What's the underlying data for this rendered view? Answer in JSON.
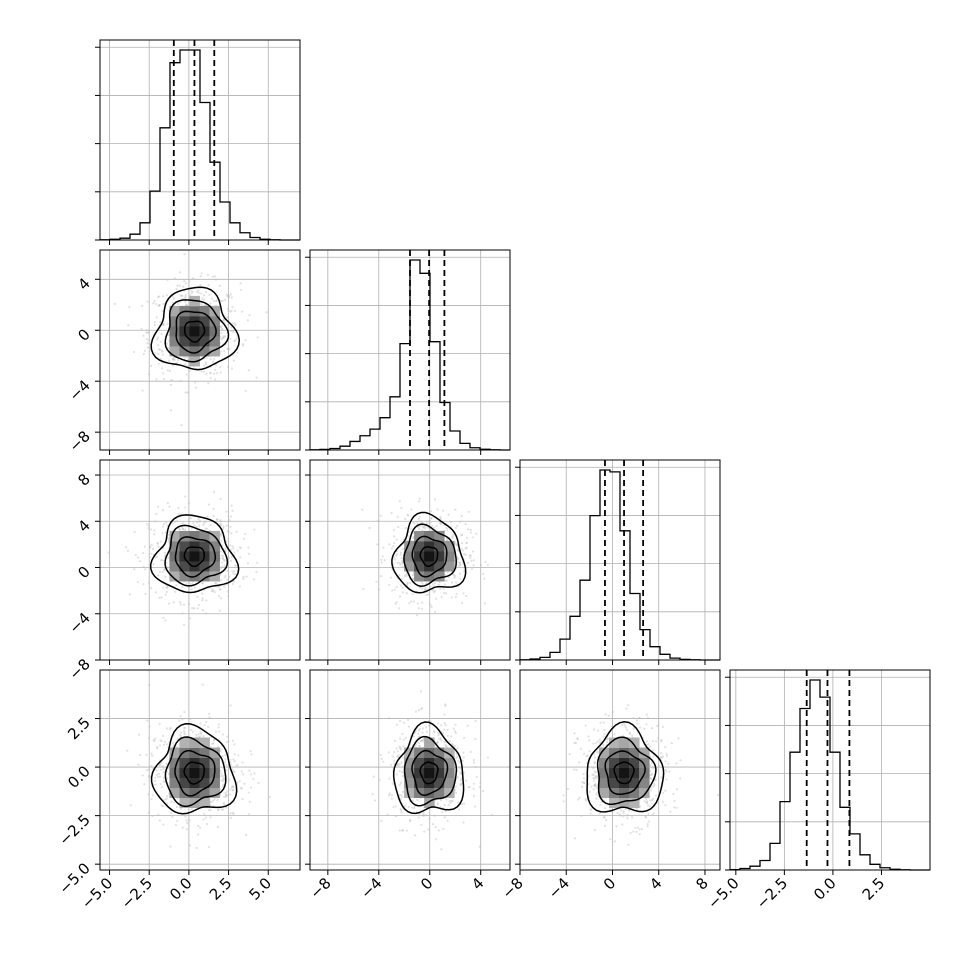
{
  "chart_data": {
    "type": "corner",
    "parameters": 4,
    "ranges": [
      [
        -5.6,
        7.0
      ],
      [
        -9.4,
        6.3
      ],
      [
        -8.0,
        9.3
      ],
      [
        -5.3,
        5.0
      ]
    ],
    "quantiles": [
      [
        -0.95,
        0.35,
        1.6
      ],
      [
        -1.55,
        -0.05,
        1.15
      ],
      [
        -0.65,
        1.0,
        2.65
      ],
      [
        -1.35,
        -0.28,
        0.85
      ]
    ],
    "x_ticks": [
      [
        {
          "v": -5.0,
          "t": "−5.0"
        },
        {
          "v": -2.5,
          "t": "−2.5"
        },
        {
          "v": 0.0,
          "t": "0.0"
        },
        {
          "v": 2.5,
          "t": "2.5"
        },
        {
          "v": 5.0,
          "t": "5.0"
        }
      ],
      [
        {
          "v": -8,
          "t": "−8"
        },
        {
          "v": -4,
          "t": "−4"
        },
        {
          "v": 0,
          "t": "0"
        },
        {
          "v": 4,
          "t": "4"
        }
      ],
      [
        {
          "v": -8,
          "t": "−8"
        },
        {
          "v": -4,
          "t": "−4"
        },
        {
          "v": 0,
          "t": "0"
        },
        {
          "v": 4,
          "t": "4"
        },
        {
          "v": 8,
          "t": "8"
        }
      ],
      [
        {
          "v": -5.0,
          "t": "−5.0"
        },
        {
          "v": -2.5,
          "t": "−2.5"
        },
        {
          "v": 0.0,
          "t": "0.0"
        },
        {
          "v": 2.5,
          "t": "2.5"
        }
      ]
    ],
    "y_ticks": [
      null,
      [
        {
          "v": 4,
          "t": "4"
        },
        {
          "v": 0,
          "t": "0"
        },
        {
          "v": -4,
          "t": "−4"
        },
        {
          "v": -8,
          "t": "−8"
        }
      ],
      [
        {
          "v": 8,
          "t": "8"
        },
        {
          "v": 4,
          "t": "4"
        },
        {
          "v": 0,
          "t": "0"
        },
        {
          "v": -4,
          "t": "−4"
        },
        {
          "v": -8,
          "t": "−8"
        }
      ],
      [
        {
          "v": 2.5,
          "t": "2.5"
        },
        {
          "v": 0.0,
          "t": "0.0"
        },
        {
          "v": -2.5,
          "t": "−2.5"
        },
        {
          "v": -5.0,
          "t": "−5.0"
        }
      ]
    ],
    "histograms": [
      {
        "edges_start": -5.6,
        "bin_width": 0.63,
        "counts": [
          1,
          4,
          10,
          32,
          95,
          270,
          620,
          980,
          1050,
          1050,
          760,
          430,
          210,
          95,
          40,
          14,
          4,
          1,
          0,
          0
        ]
      },
      {
        "edges_start": -9.4,
        "bin_width": 0.785,
        "counts": [
          1,
          3,
          8,
          20,
          45,
          75,
          110,
          170,
          280,
          560,
          1000,
          930,
          570,
          250,
          100,
          35,
          12,
          4,
          1,
          0
        ]
      },
      {
        "edges_start": -8.0,
        "bin_width": 0.865,
        "counts": [
          1,
          5,
          14,
          40,
          110,
          230,
          420,
          760,
          1000,
          990,
          680,
          350,
          160,
          70,
          30,
          10,
          3,
          1,
          0,
          0
        ]
      },
      {
        "edges_start": -5.3,
        "bin_width": 0.515,
        "counts": [
          2,
          8,
          20,
          50,
          140,
          360,
          620,
          850,
          1000,
          910,
          620,
          330,
          190,
          80,
          30,
          12,
          4,
          1,
          0,
          0
        ]
      }
    ],
    "joint_2d": [
      {
        "row": 1,
        "col": 0,
        "mean": [
          0.35,
          -0.05
        ],
        "sd": [
          1.25,
          1.6
        ]
      },
      {
        "row": 2,
        "col": 0,
        "mean": [
          0.35,
          1.0
        ],
        "sd": [
          1.25,
          1.65
        ]
      },
      {
        "row": 2,
        "col": 1,
        "mean": [
          -0.05,
          1.0
        ],
        "sd": [
          1.35,
          1.65
        ]
      },
      {
        "row": 3,
        "col": 0,
        "mean": [
          0.35,
          -0.28
        ],
        "sd": [
          1.25,
          1.1
        ]
      },
      {
        "row": 3,
        "col": 1,
        "mean": [
          -0.05,
          -0.28
        ],
        "sd": [
          1.35,
          1.1
        ]
      },
      {
        "row": 3,
        "col": 2,
        "mean": [
          1.0,
          -0.28
        ],
        "sd": [
          1.65,
          1.1
        ]
      }
    ],
    "contour_levels_sigma": [
      0.5,
      1.0,
      1.5,
      2.0
    ],
    "colors": {
      "line": "#000000",
      "grid": "#b0b0b0",
      "points": "#bdbdbd"
    }
  }
}
